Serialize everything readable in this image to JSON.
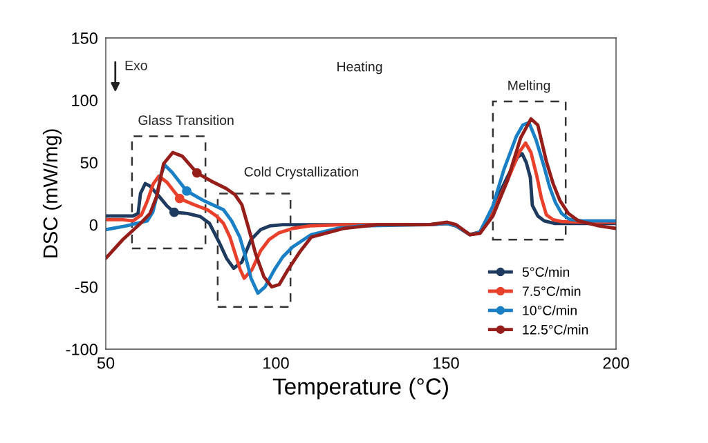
{
  "chart_data": {
    "type": "line",
    "xlabel": "Temperature (°C)",
    "ylabel": "DSC (mW/mg)",
    "xlim": [
      50,
      200
    ],
    "xticks": [
      50,
      100,
      150,
      200
    ],
    "ylim": [
      -100,
      150
    ],
    "yticks": [
      -100,
      -50,
      0,
      50,
      100,
      150
    ],
    "grid": false,
    "legend": "bottom right",
    "line_style": "solid",
    "annotations": [
      "Exo",
      "Heating",
      "Glass Transition",
      "Cold Crystallization",
      "Melting"
    ],
    "series": [
      {
        "name": "5°C/min",
        "color": "#1f3a5f",
        "x": [
          50,
          58,
          59.5,
          60.2,
          61.6,
          63,
          65.6,
          68,
          70.1,
          74,
          77.8,
          80.5,
          83.3,
          85.5,
          87.6,
          90,
          92.7,
          95.5,
          98.2,
          102,
          110,
          130,
          145,
          150.4,
          153,
          157,
          160,
          163.8,
          168,
          171,
          172.4,
          173.6,
          174.8,
          175.4,
          177,
          178.9,
          182,
          190,
          200
        ],
        "values": [
          7,
          7,
          9,
          25,
          33,
          31,
          23,
          15,
          10,
          9,
          6.5,
          1,
          -14,
          -27,
          -35,
          -30,
          -12,
          -4,
          -1,
          0,
          0,
          0,
          0,
          1,
          -1,
          -8,
          -6,
          14,
          38,
          54,
          57,
          50,
          38,
          15.5,
          7,
          3,
          1,
          1,
          1
        ]
      },
      {
        "name": "7.5°C/min",
        "color": "#e8402a",
        "x": [
          50,
          55,
          58,
          60.5,
          62.2,
          64,
          65.6,
          68,
          71.7,
          76,
          79.9,
          82.5,
          84.6,
          86.5,
          88,
          89.5,
          90.7,
          93,
          95.5,
          98,
          100.8,
          105,
          110,
          120,
          145,
          150.4,
          153,
          157,
          160,
          163.8,
          168,
          171.5,
          173.4,
          175,
          176.8,
          178,
          179.5,
          181.5,
          184,
          190,
          200
        ],
        "values": [
          4,
          4,
          3,
          8,
          19,
          33,
          39,
          34,
          21,
          16,
          12,
          7,
          1,
          -10,
          -23,
          -36,
          -43,
          -36,
          -21,
          -12,
          -6.7,
          -3,
          -1,
          0,
          0,
          1,
          -1,
          -8,
          -6,
          10,
          35,
          58,
          65.6,
          58,
          38,
          22,
          8,
          4,
          2.5,
          2,
          2
        ]
      },
      {
        "name": "10°C/min",
        "color": "#1a7fc4",
        "x": [
          50,
          56,
          62.2,
          63.8,
          65,
          66.2,
          67.3,
          69.5,
          73.8,
          79,
          84.6,
          87,
          89.4,
          91,
          92.7,
          94.7,
          96.8,
          99.6,
          102,
          104.9,
          110.4,
          118,
          125,
          145,
          150.4,
          153,
          157,
          160,
          163.8,
          167,
          170.7,
          172.6,
          174.4,
          176.5,
          178.8,
          180.5,
          182.2,
          184,
          186.2,
          190,
          200
        ],
        "values": [
          -4,
          -1,
          3,
          10,
          23,
          40,
          48,
          42,
          27,
          19,
          12,
          3,
          -10,
          -25,
          -43,
          -55,
          -50,
          -36,
          -26,
          -18,
          -8,
          -3,
          -1,
          0,
          1,
          -1,
          -8,
          -6,
          15,
          44,
          71,
          80,
          82,
          68,
          47,
          30,
          17.7,
          9,
          4.4,
          3,
          3
        ]
      },
      {
        "name": "12.5°C/min",
        "color": "#961e1a",
        "x": [
          50,
          55,
          60.2,
          63,
          65,
          67,
          69.7,
          72.5,
          76.8,
          81,
          85.4,
          88,
          90,
          92,
          94,
          96.5,
          98.8,
          101,
          103.6,
          107,
          110.4,
          120,
          130,
          145,
          150.4,
          153,
          157,
          160,
          163.8,
          168,
          172,
          175,
          177,
          179.5,
          181.5,
          183.5,
          186,
          189,
          195,
          200
        ],
        "values": [
          -27,
          -12,
          1,
          9,
          23,
          49,
          58,
          55,
          41.6,
          35,
          29,
          24,
          16,
          -3,
          -23,
          -42,
          -50,
          -48,
          -36,
          -22,
          -10,
          -3,
          0,
          0,
          2,
          0,
          -8,
          -7,
          7,
          35,
          70,
          85,
          80,
          51,
          33,
          19.4,
          9,
          3,
          -1,
          -3
        ]
      },
      {
        "type": "scatter",
        "color": "#1f3a5f",
        "x": [
          70.1
        ],
        "values": [
          10
        ]
      },
      {
        "type": "scatter",
        "color": "#e8402a",
        "x": [
          71.7
        ],
        "values": [
          21
        ]
      },
      {
        "type": "scatter",
        "color": "#1a7fc4",
        "x": [
          73.8
        ],
        "values": [
          27
        ]
      },
      {
        "type": "scatter",
        "color": "#961e1a",
        "x": [
          76.8
        ],
        "values": [
          41.6
        ]
      }
    ]
  }
}
